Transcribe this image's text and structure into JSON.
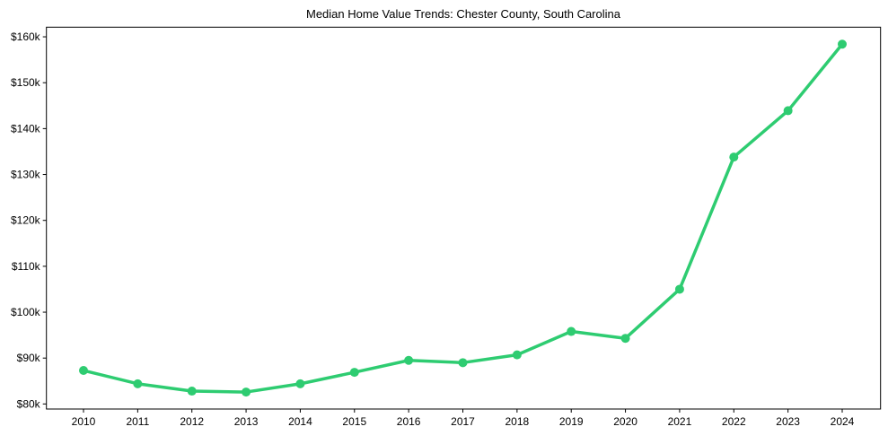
{
  "chart_data": {
    "type": "line",
    "title": "Median Home Value Trends: Chester County, South Carolina",
    "xlabel": "",
    "ylabel": "",
    "categories": [
      "2010",
      "2011",
      "2012",
      "2013",
      "2014",
      "2015",
      "2016",
      "2017",
      "2018",
      "2019",
      "2020",
      "2021",
      "2022",
      "2023",
      "2024"
    ],
    "series": [
      {
        "name": "Median Home Value",
        "color": "#2ecc71",
        "values": [
          87300,
          84400,
          82800,
          82600,
          84400,
          86900,
          89500,
          89000,
          90700,
          95800,
          94300,
          105000,
          133800,
          143900,
          158400
        ]
      }
    ],
    "yticks": [
      80000,
      90000,
      100000,
      110000,
      120000,
      130000,
      140000,
      150000,
      160000
    ],
    "ytick_labels": [
      "$80k",
      "$90k",
      "$100k",
      "$110k",
      "$120k",
      "$130k",
      "$140k",
      "$150k",
      "$160k"
    ],
    "ylim": [
      78900,
      162100
    ],
    "grid": false,
    "legend": "none"
  }
}
